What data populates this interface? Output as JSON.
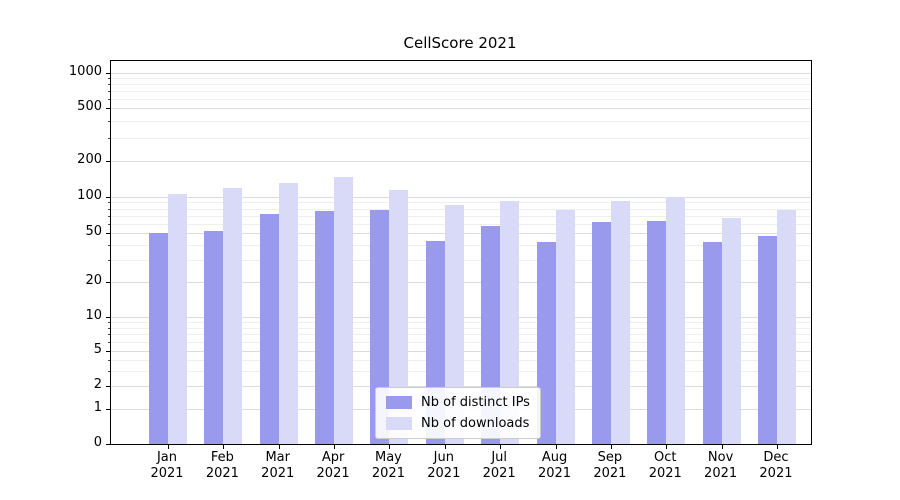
{
  "chart_data": {
    "type": "bar",
    "title": "CellScore 2021",
    "categories": [
      "Jan",
      "Feb",
      "Mar",
      "Apr",
      "May",
      "Jun",
      "Jul",
      "Aug",
      "Sep",
      "Oct",
      "Nov",
      "Dec"
    ],
    "year": "2021",
    "series": [
      {
        "name": "Nb of distinct IPs",
        "color": "#9999ee",
        "values": [
          50,
          52,
          72,
          76,
          78,
          43,
          57,
          42,
          62,
          63,
          42,
          47
        ]
      },
      {
        "name": "Nb of downloads",
        "color": "#d9d9f8",
        "values": [
          105,
          120,
          130,
          148,
          115,
          85,
          92,
          78,
          93,
          100,
          67,
          78
        ]
      }
    ],
    "yscale": "symlog",
    "yticks": [
      0,
      1,
      2,
      5,
      10,
      20,
      50,
      100,
      200,
      500,
      1000
    ],
    "ylim": [
      0,
      1300
    ],
    "grid": true,
    "legend_position": "lower center"
  }
}
